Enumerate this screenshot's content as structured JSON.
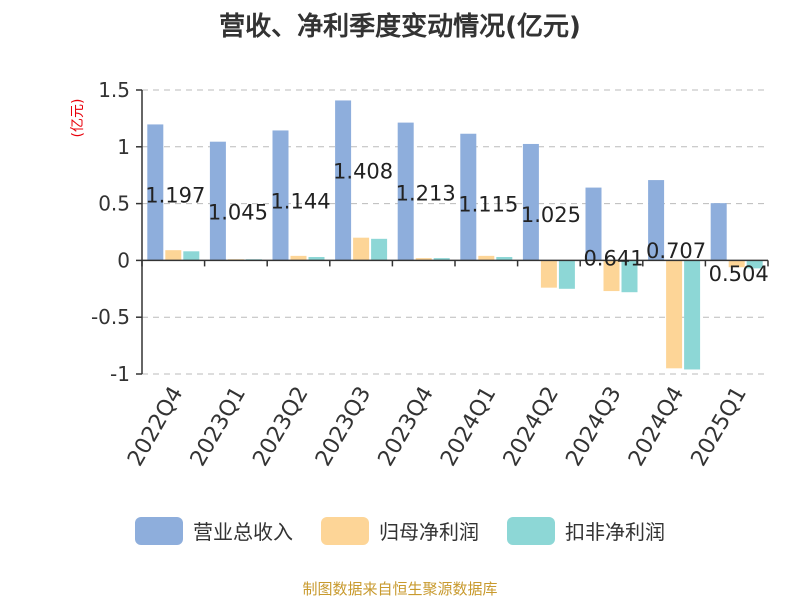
{
  "page": {
    "footer": "制图数据来自恒生聚源数据库"
  },
  "chart_data": {
    "type": "bar",
    "title": "营收、净利季度变动情况(亿元)",
    "ylabel": "(亿元)",
    "xlabel": "",
    "ylim": [
      -1,
      1.5
    ],
    "yticks": [
      1.5,
      1,
      0.5,
      0,
      -0.5,
      -1
    ],
    "ytick_labels": [
      "1.5",
      "1",
      "0.5",
      "0",
      "-0.5",
      "-1"
    ],
    "grid": true,
    "legend_position": "bottom",
    "categories": [
      "2022Q4",
      "2023Q1",
      "2023Q2",
      "2023Q3",
      "2023Q4",
      "2024Q1",
      "2024Q2",
      "2024Q3",
      "2024Q4",
      "2025Q1"
    ],
    "series": [
      {
        "name": "营业总收入",
        "color": "#8eaedc",
        "values": [
          1.197,
          1.045,
          1.144,
          1.408,
          1.213,
          1.115,
          1.025,
          0.641,
          0.707,
          0.504
        ],
        "labels": [
          "1.197",
          "1.045",
          "1.144",
          "1.408",
          "1.213",
          "1.115",
          "1.025",
          "0.641",
          "0.707",
          "0.504"
        ]
      },
      {
        "name": "归母净利润",
        "color": "#fdd597",
        "values": [
          0.09,
          0.01,
          0.04,
          0.2,
          0.02,
          0.04,
          -0.24,
          -0.27,
          -0.95,
          -0.06
        ]
      },
      {
        "name": "扣非净利润",
        "color": "#8dd7d6",
        "values": [
          0.08,
          0.01,
          0.03,
          0.19,
          0.02,
          0.03,
          -0.25,
          -0.28,
          -0.96,
          -0.07
        ]
      }
    ]
  }
}
